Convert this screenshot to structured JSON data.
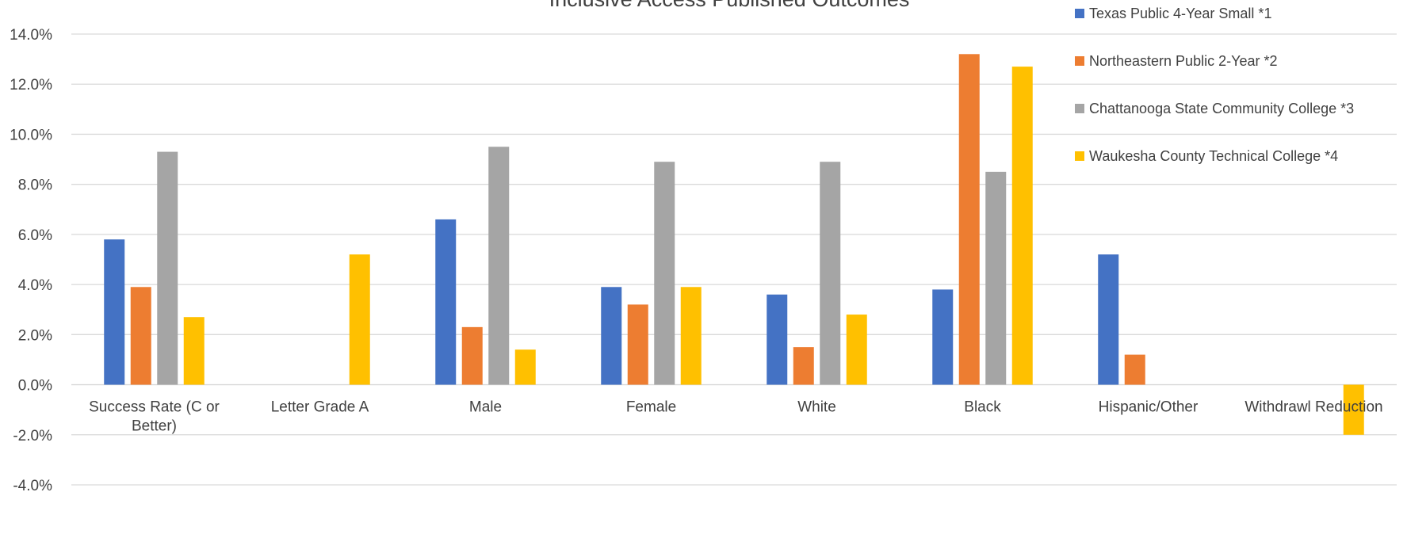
{
  "chart_data": {
    "type": "bar",
    "title": "Inclusive Access Published Outcomes",
    "categories": [
      [
        "Success Rate (C or",
        "Better)"
      ],
      [
        "Letter Grade A"
      ],
      [
        "Male"
      ],
      [
        "Female"
      ],
      [
        "White"
      ],
      [
        "Black"
      ],
      [
        "Hispanic/Other"
      ],
      [
        "Withdrawl Reduction"
      ]
    ],
    "series": [
      {
        "name": "Texas Public 4-Year Small  *1",
        "color": "#4472C4",
        "values": [
          5.8,
          null,
          6.6,
          3.9,
          3.6,
          3.8,
          5.2,
          null
        ]
      },
      {
        "name": "Northeastern Public 2-Year *2",
        "color": "#ED7D31",
        "values": [
          3.9,
          null,
          2.3,
          3.2,
          1.5,
          13.2,
          1.2,
          null
        ]
      },
      {
        "name": "Chattanooga State Community College *3",
        "color": "#A5A5A5",
        "values": [
          9.3,
          null,
          9.5,
          8.9,
          8.9,
          8.5,
          null,
          null
        ]
      },
      {
        "name": "Waukesha County Technical College *4",
        "color": "#FFC000",
        "values": [
          2.7,
          5.2,
          1.4,
          3.9,
          2.8,
          12.7,
          null,
          -2.0
        ]
      }
    ],
    "yticks": [
      "14.0%",
      "12.0%",
      "10.0%",
      "8.0%",
      "6.0%",
      "4.0%",
      "2.0%",
      "0.0%",
      "-2.0%",
      "-4.0%"
    ],
    "ylim": [
      -4,
      14
    ],
    "ylabel": "",
    "xlabel": "",
    "grid": true,
    "legend_position": "top-right"
  }
}
